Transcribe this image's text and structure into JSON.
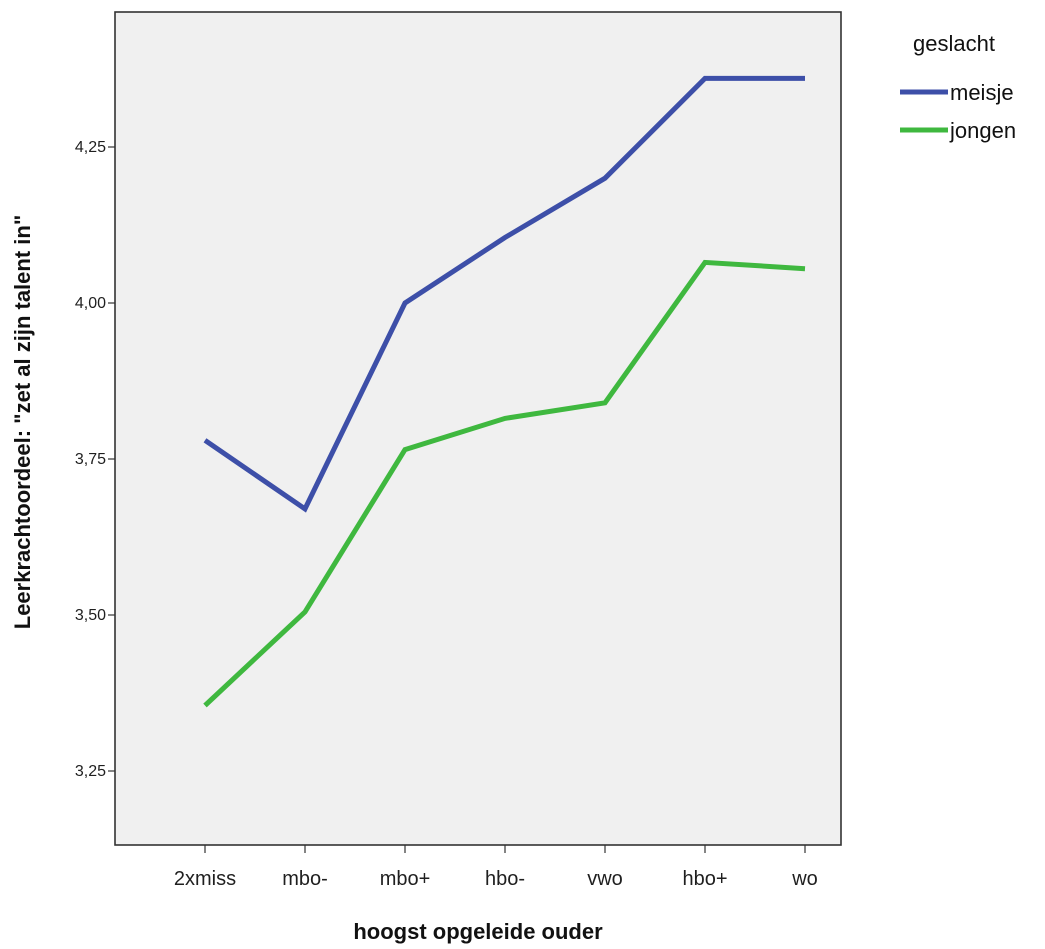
{
  "chart_data": {
    "type": "line",
    "title": "",
    "xlabel": "hoogst opgeleide ouder",
    "ylabel": "Leerkrachtoordeel: \"zet al zijn talent in\"",
    "categories": [
      "2xmiss",
      "mbo-",
      "mbo+",
      "hbo-",
      "vwo",
      "hbo+",
      "wo"
    ],
    "ylim": [
      3.14,
      4.45
    ],
    "yticks": [
      3.25,
      3.5,
      3.75,
      4.0,
      4.25
    ],
    "ytick_labels": [
      "3,25",
      "3,50",
      "3,75",
      "4,00",
      "4,25"
    ],
    "grid": false,
    "legend": {
      "title": "geslacht",
      "placement": "top-right, outside plot"
    },
    "series": [
      {
        "name": "meisje",
        "color": "#3d4fa8",
        "values": [
          3.78,
          3.67,
          4.0,
          4.105,
          4.2,
          4.36,
          4.36
        ]
      },
      {
        "name": "jongen",
        "color": "#3fb83f",
        "values": [
          3.355,
          3.505,
          3.765,
          3.815,
          3.84,
          4.065,
          4.055
        ]
      }
    ],
    "colors": {
      "plot_background": "#f0f0f0",
      "frame": "#333333"
    }
  }
}
